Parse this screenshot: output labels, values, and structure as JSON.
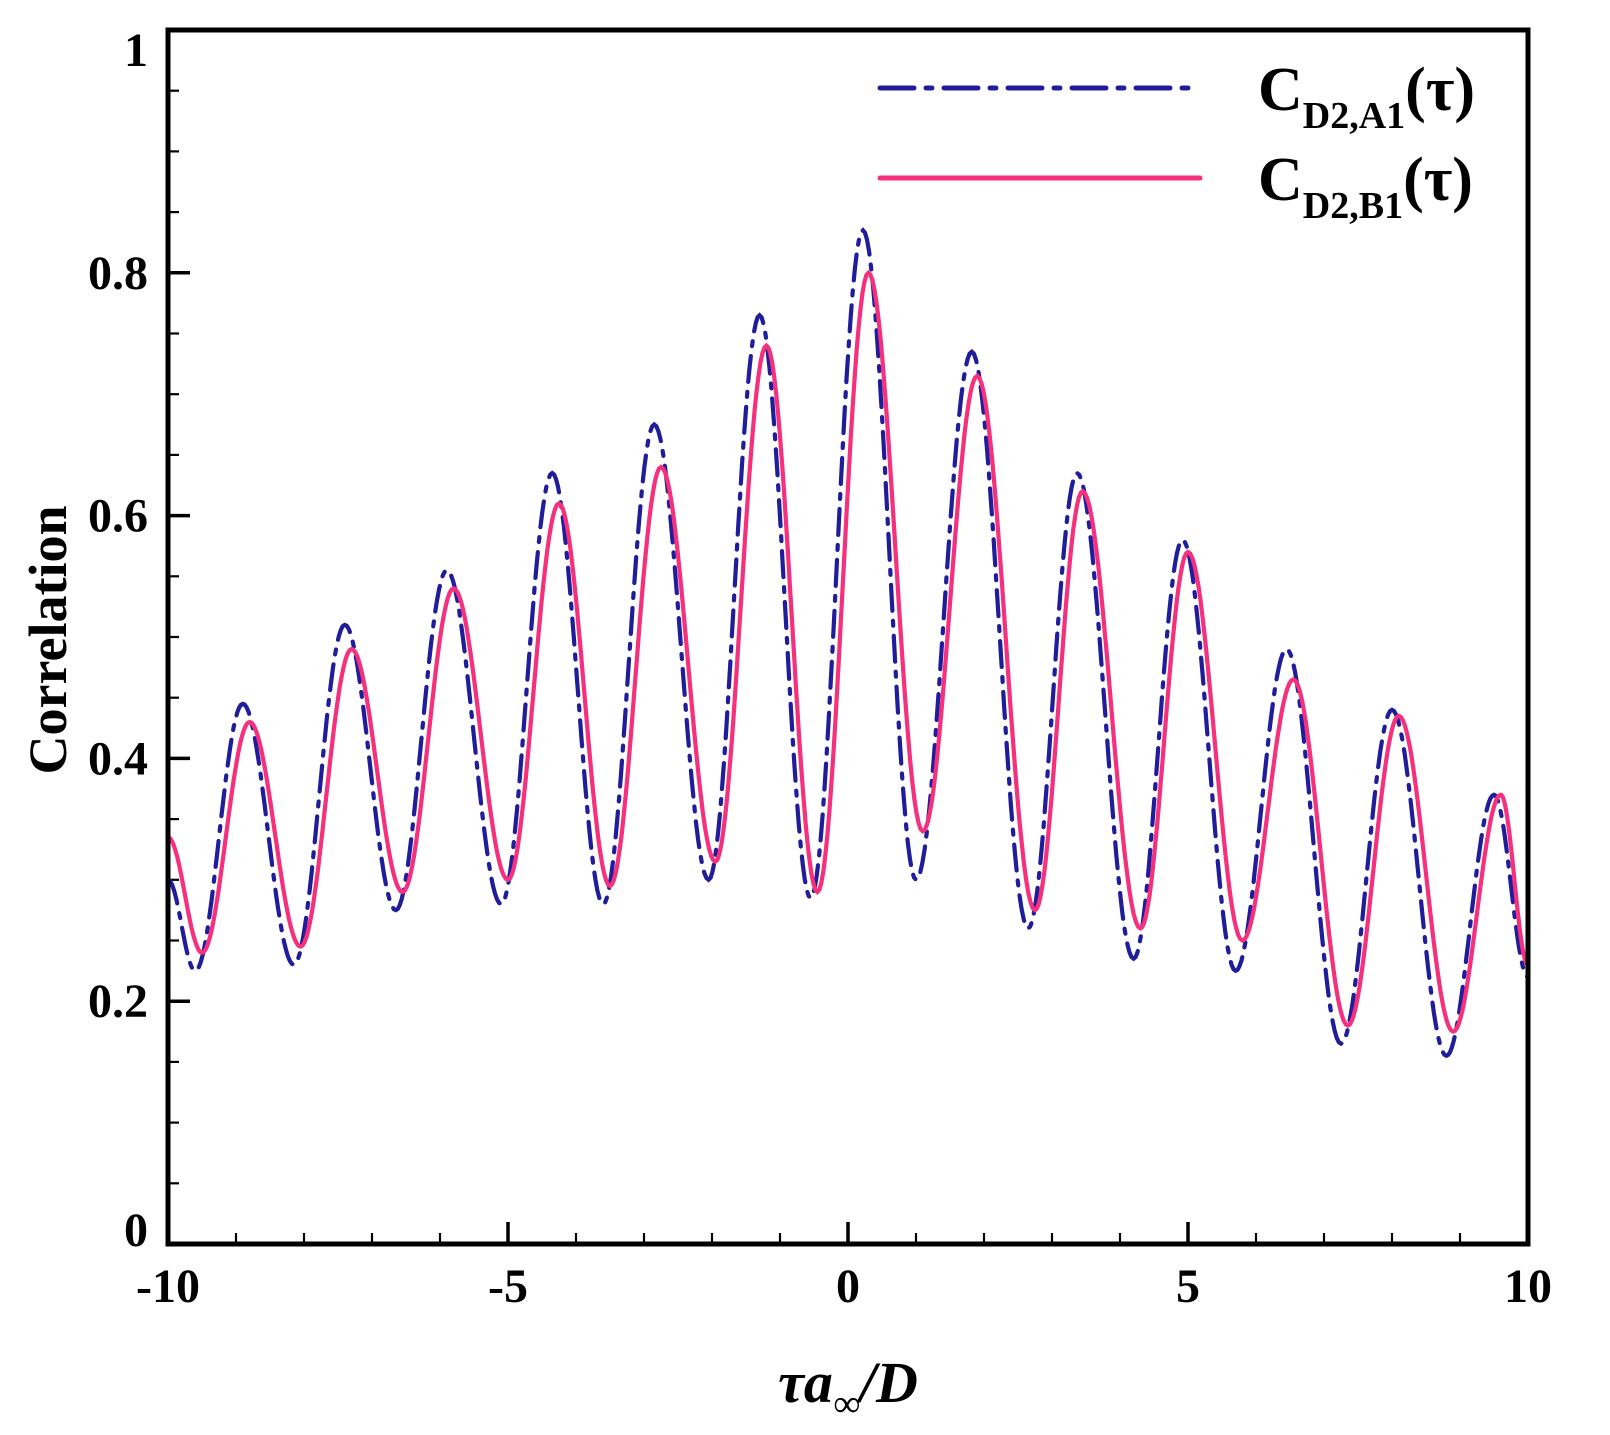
{
  "chart_data": {
    "type": "line",
    "title": "",
    "ylabel": "Correlation",
    "xlabel_parts": {
      "pre": "τa",
      "sub": "∞",
      "post": "/D"
    },
    "xlim": [
      -10,
      10
    ],
    "ylim": [
      0,
      1
    ],
    "x_major_ticks": [
      -10,
      -5,
      0,
      5,
      10
    ],
    "x_tick_labels": [
      "-10",
      "-5",
      "0",
      "5",
      "10"
    ],
    "x_minor_step": 1,
    "y_major_ticks": [
      0,
      0.2,
      0.4,
      0.6,
      0.8,
      1
    ],
    "y_tick_labels": [
      "0",
      "0.2",
      "0.4",
      "0.6",
      "0.8",
      "1"
    ],
    "y_minor_step": 0.05,
    "grid": false,
    "legend_position": "top-right",
    "interpolation": "cosine-through-extrema",
    "frame_color": "#000000",
    "series": [
      {
        "name_main": "C",
        "name_sub": "D2,A1",
        "name_suffix": "(τ)",
        "color": "#201D9B",
        "style": "dash-dot",
        "anchors": [
          [
            -10,
            0.3
          ],
          [
            -9.6,
            0.225
          ],
          [
            -8.9,
            0.445
          ],
          [
            -8.15,
            0.23
          ],
          [
            -7.4,
            0.51
          ],
          [
            -6.65,
            0.275
          ],
          [
            -5.9,
            0.555
          ],
          [
            -5.1,
            0.28
          ],
          [
            -4.35,
            0.635
          ],
          [
            -3.6,
            0.28
          ],
          [
            -2.85,
            0.675
          ],
          [
            -2.05,
            0.3
          ],
          [
            -1.3,
            0.765
          ],
          [
            -0.55,
            0.285
          ],
          [
            0.22,
            0.835
          ],
          [
            1.0,
            0.3
          ],
          [
            1.82,
            0.735
          ],
          [
            2.65,
            0.26
          ],
          [
            3.37,
            0.635
          ],
          [
            4.2,
            0.235
          ],
          [
            4.92,
            0.58
          ],
          [
            5.7,
            0.225
          ],
          [
            6.45,
            0.49
          ],
          [
            7.25,
            0.165
          ],
          [
            8.0,
            0.44
          ],
          [
            8.8,
            0.155
          ],
          [
            9.5,
            0.37
          ],
          [
            10,
            0.22
          ]
        ]
      },
      {
        "name_main": "C",
        "name_sub": "D2,B1",
        "name_suffix": "(τ)",
        "color": "#F5307C",
        "style": "solid",
        "anchors": [
          [
            -10,
            0.335
          ],
          [
            -9.5,
            0.24
          ],
          [
            -8.8,
            0.43
          ],
          [
            -8.05,
            0.245
          ],
          [
            -7.3,
            0.49
          ],
          [
            -6.55,
            0.29
          ],
          [
            -5.8,
            0.54
          ],
          [
            -5.0,
            0.3
          ],
          [
            -4.25,
            0.61
          ],
          [
            -3.5,
            0.295
          ],
          [
            -2.75,
            0.64
          ],
          [
            -1.95,
            0.315
          ],
          [
            -1.2,
            0.74
          ],
          [
            -0.45,
            0.29
          ],
          [
            0.3,
            0.8
          ],
          [
            1.1,
            0.34
          ],
          [
            1.9,
            0.715
          ],
          [
            2.75,
            0.275
          ],
          [
            3.45,
            0.62
          ],
          [
            4.3,
            0.26
          ],
          [
            5.0,
            0.57
          ],
          [
            5.8,
            0.25
          ],
          [
            6.55,
            0.465
          ],
          [
            7.35,
            0.18
          ],
          [
            8.1,
            0.435
          ],
          [
            8.9,
            0.175
          ],
          [
            9.6,
            0.37
          ],
          [
            10,
            0.23
          ]
        ]
      }
    ]
  }
}
